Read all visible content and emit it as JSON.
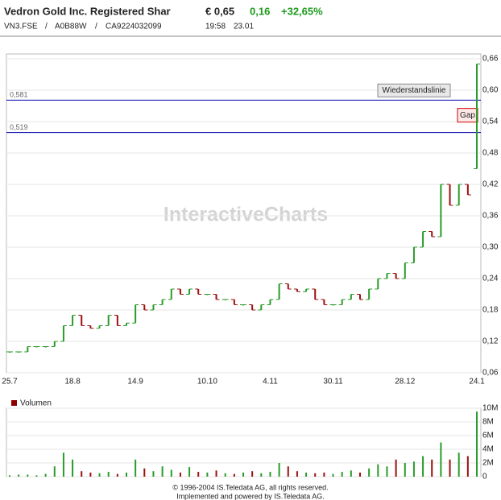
{
  "header": {
    "name": "Vedron Gold Inc. Registered Shar",
    "price": "€ 0,65",
    "change": "0,16",
    "change_pct": "+32,65%",
    "ids": [
      "VN3.FSE",
      "/",
      "A0B88W",
      "/",
      "CA9224032099"
    ],
    "time": "19:58",
    "date": "23.01"
  },
  "chart_data": [
    {
      "type": "ohlc",
      "categories": [
        "25.7",
        null,
        null,
        null,
        null,
        null,
        null,
        "18.8",
        null,
        null,
        null,
        null,
        null,
        null,
        "14.9",
        null,
        null,
        null,
        null,
        null,
        null,
        null,
        "10.10",
        null,
        null,
        null,
        null,
        null,
        null,
        "4.11",
        null,
        null,
        null,
        null,
        null,
        null,
        "30.11",
        null,
        null,
        null,
        null,
        null,
        null,
        null,
        "28.12",
        null,
        null,
        null,
        null,
        null,
        null,
        null,
        "24.1"
      ],
      "open": [
        0.1,
        0.1,
        0.1,
        0.11,
        0.11,
        0.11,
        0.12,
        0.15,
        0.17,
        0.15,
        0.145,
        0.15,
        0.17,
        0.15,
        0.155,
        0.19,
        0.18,
        0.19,
        0.2,
        0.22,
        0.21,
        0.22,
        0.21,
        0.21,
        0.2,
        0.2,
        0.19,
        0.19,
        0.18,
        0.19,
        0.2,
        0.23,
        0.22,
        0.215,
        0.22,
        0.2,
        0.19,
        0.19,
        0.2,
        0.21,
        0.2,
        0.22,
        0.24,
        0.25,
        0.24,
        0.27,
        0.3,
        0.33,
        0.32,
        0.42,
        0.38,
        0.42,
        0.45
      ],
      "close": [
        0.1,
        0.1,
        0.11,
        0.11,
        0.11,
        0.12,
        0.15,
        0.17,
        0.15,
        0.145,
        0.15,
        0.17,
        0.15,
        0.155,
        0.19,
        0.18,
        0.19,
        0.2,
        0.22,
        0.21,
        0.22,
        0.21,
        0.21,
        0.2,
        0.2,
        0.19,
        0.19,
        0.18,
        0.19,
        0.2,
        0.23,
        0.22,
        0.215,
        0.22,
        0.2,
        0.19,
        0.19,
        0.2,
        0.21,
        0.2,
        0.22,
        0.24,
        0.25,
        0.24,
        0.27,
        0.3,
        0.33,
        0.32,
        0.42,
        0.38,
        0.42,
        0.4,
        0.65
      ],
      "up_color": "#2a9a2a",
      "down_color": "#9a1010",
      "ylim": [
        0.06,
        0.66
      ],
      "yticks": [
        {
          "value": 0.06,
          "label": "0,06"
        },
        {
          "value": 0.12,
          "label": "0,12"
        },
        {
          "value": 0.18,
          "label": "0,18"
        },
        {
          "value": 0.24,
          "label": "0,24"
        },
        {
          "value": 0.3,
          "label": "0,30"
        },
        {
          "value": 0.36,
          "label": "0,36"
        },
        {
          "value": 0.42,
          "label": "0,42"
        },
        {
          "value": 0.48,
          "label": "0,48"
        },
        {
          "value": 0.54,
          "label": "0,54"
        },
        {
          "value": 0.6,
          "label": "0,60"
        },
        {
          "value": 0.66,
          "label": "0,66"
        }
      ],
      "grid": true,
      "lines": [
        {
          "value": 0.581,
          "label": "0,581",
          "note": "Wiederstandslinie"
        },
        {
          "value": 0.519,
          "label": "0,519",
          "note": "Gap"
        }
      ],
      "line_color": "#0000aa",
      "watermark": "InteractiveCharts"
    },
    {
      "type": "bar",
      "legend": "Volumen",
      "color": "#8b0000",
      "values": [
        200000,
        300000,
        300000,
        200000,
        400000,
        1500000,
        3500000,
        2500000,
        800000,
        600000,
        500000,
        700000,
        400000,
        600000,
        2500000,
        1200000,
        800000,
        1500000,
        1000000,
        600000,
        1400000,
        700000,
        600000,
        900000,
        500000,
        400000,
        600000,
        800000,
        500000,
        700000,
        2000000,
        1500000,
        800000,
        600000,
        500000,
        600000,
        400000,
        700000,
        900000,
        600000,
        1200000,
        1800000,
        1500000,
        2500000,
        2000000,
        2200000,
        3000000,
        2500000,
        5000000,
        2500000,
        3500000,
        3000000,
        9500000
      ],
      "ylim": [
        0,
        10000000
      ],
      "yticks": [
        0,
        {
          "value": 2000000,
          "label": "2M"
        },
        {
          "value": 4000000,
          "label": "4M"
        },
        {
          "value": 6000000,
          "label": "6M"
        },
        {
          "value": 8000000,
          "label": "8M"
        },
        {
          "value": 10000000,
          "label": "10M"
        }
      ],
      "grid": true
    }
  ],
  "footer": [
    "© 1996-2004 IS.Teledata AG, all rights reserved.",
    "Implemented and powered by IS.Teledata AG."
  ]
}
